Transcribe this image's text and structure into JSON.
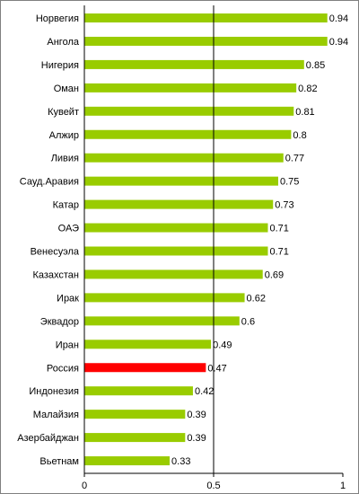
{
  "chart_data": {
    "type": "bar",
    "orientation": "horizontal",
    "title": "",
    "xlabel": "",
    "ylabel": "",
    "xlim": [
      0,
      1
    ],
    "xticks": [
      0,
      0.5,
      1
    ],
    "xtick_labels": [
      "0",
      "0.5",
      "1"
    ],
    "grid": false,
    "reference_line": 0.5,
    "categories": [
      "Норвегия",
      "Ангола",
      "Нигерия",
      "Оман",
      "Кувейт",
      "Алжир",
      "Ливия",
      "Сауд.Аравия",
      "Катар",
      "ОАЭ",
      "Венесуэла",
      "Казахстан",
      "Ирак",
      "Эквадор",
      "Иран",
      "Россия",
      "Индонезия",
      "Малайзия",
      "Азербайджан",
      "Вьетнам"
    ],
    "values": [
      0.94,
      0.94,
      0.85,
      0.82,
      0.81,
      0.8,
      0.77,
      0.75,
      0.73,
      0.71,
      0.71,
      0.69,
      0.62,
      0.6,
      0.49,
      0.47,
      0.42,
      0.39,
      0.39,
      0.33
    ],
    "value_labels": [
      "0.94",
      "0.94",
      "0.85",
      "0.82",
      "0.81",
      "0.8",
      "0.77",
      "0.75",
      "0.73",
      "0.71",
      "0.71",
      "0.69",
      "0.62",
      "0.6",
      "0.49",
      "0.47",
      "0.42",
      "0.39",
      "0.39",
      "0.33"
    ],
    "colors": {
      "bar": "#99CC00",
      "highlight": "#FF0000",
      "highlight_category": "Россия",
      "axis": "#000000",
      "frame": "#808080"
    }
  }
}
